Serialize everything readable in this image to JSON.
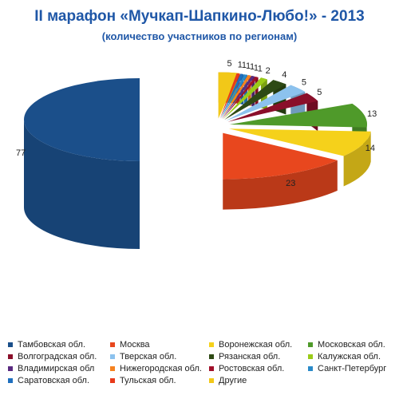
{
  "title": "II марафон «Мучкап-Шапкино-Любо!» - 2013",
  "subtitle": "(количество участников по регионам)",
  "chart_data": {
    "type": "pie",
    "title": "II марафон «Мучкап-Шапкино-Любо!» - 2013",
    "subtitle": "(количество участников по регионам)",
    "legend_position": "bottom",
    "series": [
      {
        "name": "Тамбовская обл.",
        "value": 77,
        "color": "#1b4f8a"
      },
      {
        "name": "Москва",
        "value": 23,
        "color": "#e8471e"
      },
      {
        "name": "Воронежская обл.",
        "value": 14,
        "color": "#f5d11b"
      },
      {
        "name": "Московская обл.",
        "value": 13,
        "color": "#4f9a2a"
      },
      {
        "name": "Волгоградская обл.",
        "value": 5,
        "color": "#8a0f2a"
      },
      {
        "name": "Тверская обл.",
        "value": 5,
        "color": "#8cc2ee"
      },
      {
        "name": "Рязанская обл.",
        "value": 4,
        "color": "#2e4a14"
      },
      {
        "name": "Калужская обл.",
        "value": 2,
        "color": "#9acb18"
      },
      {
        "name": "Владимирская обл",
        "value": 1,
        "color": "#5a2a80"
      },
      {
        "name": "Нижегородская обл.",
        "value": 1,
        "color": "#f58220"
      },
      {
        "name": "Ростовская обл.",
        "value": 1,
        "color": "#a0102a"
      },
      {
        "name": "Санкт-Петербург",
        "value": 1,
        "color": "#2a8ac8"
      },
      {
        "name": "Саратовская обл.",
        "value": 1,
        "color": "#1f6fbe"
      },
      {
        "name": "Тульская обл.",
        "value": 1,
        "color": "#e83a1a"
      },
      {
        "name": "Другие",
        "value": 5,
        "color": "#f2c818"
      }
    ],
    "legend_order": [
      "Тамбовская обл.",
      "Москва",
      "Воронежская обл.",
      "Московская обл.",
      "Волгоградская обл.",
      "Тверская обл.",
      "Рязанская обл.",
      "Калужская обл.",
      "Владимирская обл",
      "Нижегородская обл.",
      "Ростовская обл.",
      "Санкт-Петербург",
      "Саратовская обл.",
      "Тульская обл.",
      "Другие"
    ],
    "label_order": [
      "Другие",
      "Тульская обл.",
      "Саратовская обл.",
      "Санкт-Петербург",
      "Нижегородская обл.",
      "Владимирская обл",
      "Ростовская обл.",
      "Калужская обл.",
      "Рязанская обл.",
      "Тверская обл.",
      "Волгоградская обл.",
      "Московская обл.",
      "Воронежская обл.",
      "Москва"
    ],
    "exploded_series": "Тамбовская обл."
  }
}
